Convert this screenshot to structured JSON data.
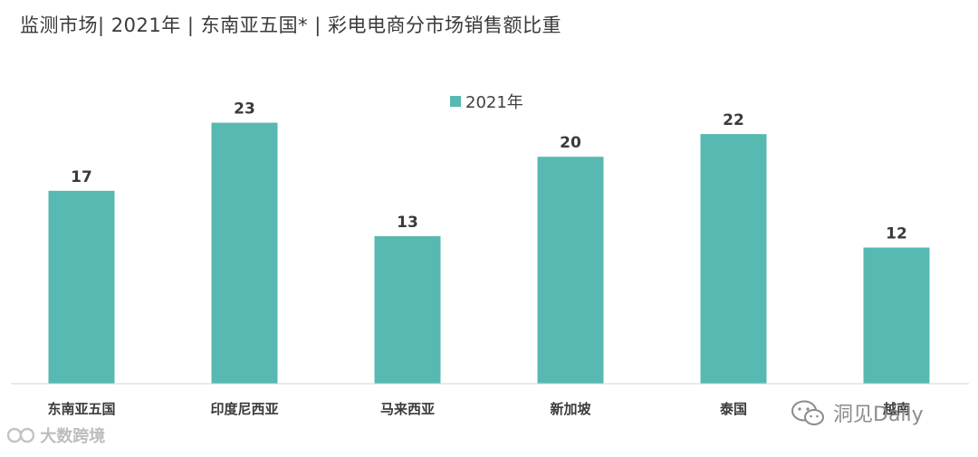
{
  "title": "监测市场| 2021年 | 东南亚五国* | 彩电电商分市场销售额比重",
  "colors": {
    "bar": "#57b9b1",
    "axis": "#d6d6d6",
    "text": "#3a3a3a"
  },
  "chart_data": {
    "type": "bar",
    "title": "监测市场| 2021年 | 东南亚五国* | 彩电电商分市场销售额比重",
    "categories": [
      "东南亚五国",
      "印度尼西亚",
      "马来西亚",
      "新加坡",
      "泰国",
      "越南"
    ],
    "series": [
      {
        "name": "2021年",
        "values": [
          17,
          23,
          13,
          20,
          22,
          12
        ]
      }
    ],
    "ylim": [
      0,
      26
    ],
    "legend": "top-center",
    "grid": false,
    "data_labels": true
  },
  "watermarks": {
    "left": {
      "text": "大数跨境",
      "icon": "brand-logo-icon"
    },
    "right": {
      "text": "洞见Daily",
      "icon": "wechat-icon"
    }
  }
}
